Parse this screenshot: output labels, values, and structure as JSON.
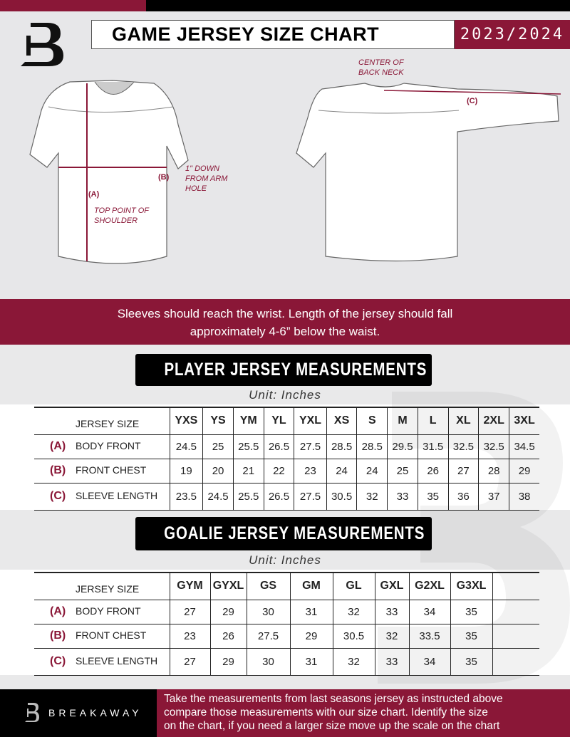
{
  "header": {
    "title": "GAME JERSEY SIZE CHART",
    "season": "2023/2024"
  },
  "diagram": {
    "center_back_neck": "CENTER OF BACK NECK",
    "label_a": "(A)",
    "label_b": "(B)",
    "label_c": "(C)",
    "arm_hole_note": "1\" DOWN FROM ARM HOLE",
    "shoulder_note": "TOP POINT OF SHOULDER"
  },
  "banner": {
    "line1": "Sleeves should reach the wrist. Length of the jersey should fall",
    "line2": "approximately 4-6” below the waist."
  },
  "player": {
    "title": "PLAYER JERSEY MEASUREMENTS",
    "unit": "Unit: Inches",
    "size_header": "JERSEY SIZE",
    "sizes": [
      "YXS",
      "YS",
      "YM",
      "YL",
      "YXL",
      "XS",
      "S",
      "M",
      "L",
      "XL",
      "2XL",
      "3XL"
    ],
    "rows": [
      {
        "key": "(A)",
        "label": "BODY FRONT",
        "values": [
          "24.5",
          "25",
          "25.5",
          "26.5",
          "27.5",
          "28.5",
          "28.5",
          "29.5",
          "31.5",
          "32.5",
          "32.5",
          "34.5"
        ]
      },
      {
        "key": "(B)",
        "label": "FRONT CHEST",
        "values": [
          "19",
          "20",
          "21",
          "22",
          "23",
          "24",
          "24",
          "25",
          "26",
          "27",
          "28",
          "29"
        ]
      },
      {
        "key": "(C)",
        "label": "SLEEVE LENGTH",
        "values": [
          "23.5",
          "24.5",
          "25.5",
          "26.5",
          "27.5",
          "30.5",
          "32",
          "33",
          "35",
          "36",
          "37",
          "38"
        ]
      }
    ]
  },
  "goalie": {
    "title": "GOALIE JERSEY MEASUREMENTS",
    "unit": "Unit: Inches",
    "size_header": "JERSEY SIZE",
    "sizes": [
      "GYM",
      "GYXL",
      "GS",
      "GM",
      "GL",
      "GXL",
      "G2XL",
      "G3XL",
      ""
    ],
    "rows": [
      {
        "key": "(A)",
        "label": "BODY FRONT",
        "values": [
          "27",
          "29",
          "30",
          "31",
          "32",
          "33",
          "34",
          "35",
          ""
        ]
      },
      {
        "key": "(B)",
        "label": "FRONT CHEST",
        "values": [
          "23",
          "26",
          "27.5",
          "29",
          "30.5",
          "32",
          "33.5",
          "35",
          ""
        ]
      },
      {
        "key": "(C)",
        "label": "SLEEVE LENGTH",
        "values": [
          "27",
          "29",
          "30",
          "31",
          "32",
          "33",
          "34",
          "35",
          ""
        ]
      }
    ]
  },
  "footer": {
    "brand": "BREAKAWAY",
    "note_line1": "Take the measurements from last seasons jersey as instructed above",
    "note_line2": "compare those measurements  with our size chart. Identify the size",
    "note_line3": "on the chart, if you need a larger size move up the scale on the chart"
  },
  "colors": {
    "accent": "#8a1737",
    "dark": "#000000",
    "background": "#e7e7e9"
  }
}
